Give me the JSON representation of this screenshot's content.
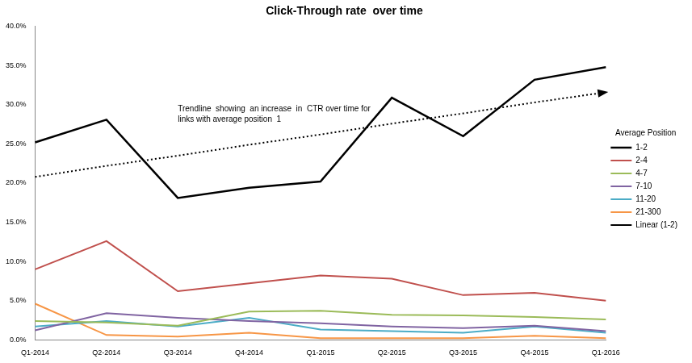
{
  "chart_data": {
    "type": "line",
    "title": "Click-Through rate  over time",
    "categories": [
      "Q1-2014",
      "Q2-2014",
      "Q3-2014",
      "Q4-2014",
      "Q1-2015",
      "Q2-2015",
      "Q3-2015",
      "Q4-2015",
      "Q1-2016"
    ],
    "series": [
      {
        "name": "1-2",
        "color": "#000000",
        "values": [
          25.2,
          28.1,
          18.1,
          19.4,
          20.2,
          30.9,
          26.0,
          33.2,
          34.8
        ]
      },
      {
        "name": "2-4",
        "color": "#c0504d",
        "values": [
          9.0,
          12.6,
          6.2,
          7.2,
          8.2,
          7.8,
          5.7,
          6.0,
          5.0
        ]
      },
      {
        "name": "4-7",
        "color": "#9bbb59",
        "values": [
          2.4,
          2.2,
          1.8,
          3.6,
          3.7,
          3.2,
          3.1,
          2.9,
          2.6
        ]
      },
      {
        "name": "7-10",
        "color": "#8064a2",
        "values": [
          1.2,
          3.4,
          2.8,
          2.4,
          2.1,
          1.7,
          1.5,
          1.8,
          1.1
        ]
      },
      {
        "name": "11-20",
        "color": "#4bacc6",
        "values": [
          1.7,
          2.4,
          1.7,
          2.8,
          1.3,
          1.1,
          0.9,
          1.7,
          0.9
        ]
      },
      {
        "name": "21-300",
        "color": "#f79646",
        "values": [
          4.6,
          0.6,
          0.4,
          0.9,
          0.2,
          0.2,
          0.2,
          0.5,
          0.2
        ]
      },
      {
        "name": "Linear (1-2)",
        "color": "#000000",
        "line_style": "dotted",
        "marker": "arrow",
        "values": [
          20.8,
          22.2,
          23.5,
          24.9,
          26.2,
          27.6,
          28.9,
          30.3,
          31.6
        ]
      }
    ],
    "annotations": [
      {
        "text": [
          "Trendline  showing  an increase  in  CTR over time for",
          "links with average position  1"
        ]
      }
    ],
    "legend_title": "Average Position",
    "legend": "right",
    "grid": false,
    "ylim": [
      0,
      40
    ],
    "yticks": [
      {
        "value": 0,
        "label": "0.0%"
      },
      {
        "value": 5,
        "label": "5.0%"
      },
      {
        "value": 10,
        "label": "10.0%"
      },
      {
        "value": 15,
        "label": "15.0%"
      },
      {
        "value": 20,
        "label": "20.0%"
      },
      {
        "value": 25,
        "label": "25.0%"
      },
      {
        "value": 30,
        "label": "30.0%"
      },
      {
        "value": 35,
        "label": "35.0%"
      },
      {
        "value": 40,
        "label": "40.0%"
      }
    ]
  }
}
